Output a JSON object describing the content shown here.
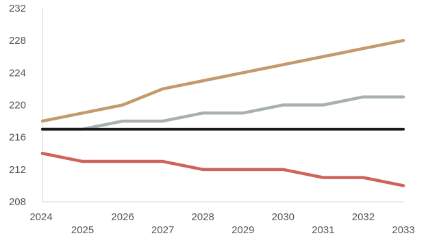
{
  "chart_data": {
    "type": "line",
    "x": [
      2024,
      2025,
      2026,
      2027,
      2028,
      2029,
      2030,
      2031,
      2032,
      2033
    ],
    "x_tick_labels": [
      "2024",
      "2025",
      "2026",
      "2027",
      "2028",
      "2029",
      "2030",
      "2031",
      "2032",
      "2033"
    ],
    "ylim": [
      208,
      232
    ],
    "y_ticks": [
      208,
      212,
      216,
      220,
      224,
      228,
      232
    ],
    "y_tick_labels": [
      "208",
      "212",
      "216",
      "220",
      "224",
      "228",
      "232"
    ],
    "title": "",
    "xlabel": "",
    "ylabel": "",
    "grid": false,
    "legend": "none",
    "series": [
      {
        "color": "#c49a6c",
        "values": [
          218,
          219,
          220,
          222,
          223,
          224,
          225,
          226,
          227,
          228
        ]
      },
      {
        "color": "#a9b0b3",
        "values": [
          217,
          217,
          218,
          218,
          219,
          219,
          220,
          220,
          221,
          221
        ]
      },
      {
        "color": "#1a1a1a",
        "values": [
          217,
          217,
          217,
          217,
          217,
          217,
          217,
          217,
          217,
          217
        ]
      },
      {
        "color": "#d0625c",
        "values": [
          214,
          213,
          213,
          213,
          212,
          212,
          212,
          211,
          211,
          210
        ]
      }
    ]
  }
}
